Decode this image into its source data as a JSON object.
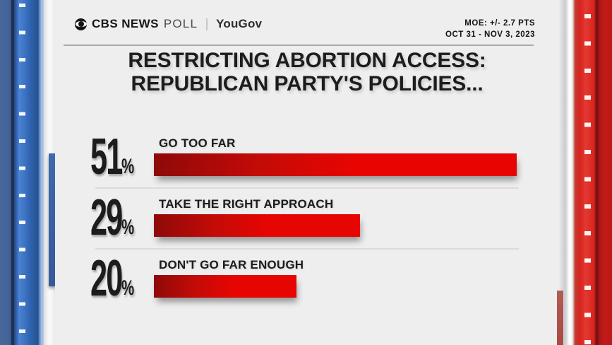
{
  "header": {
    "brand_bold": "CBS NEWS",
    "brand_light": "POLL",
    "partner": "YouGov",
    "moe_line1": "MOE: +/- 2.7 PTS",
    "moe_line2": "OCT 31 - NOV 3, 2023"
  },
  "title": {
    "line1": "RESTRICTING ABORTION ACCESS:",
    "line2": "REPUBLICAN PARTY'S POLICIES..."
  },
  "chart_data": {
    "type": "bar",
    "orientation": "horizontal",
    "title": "RESTRICTING ABORTION ACCESS: REPUBLICAN PARTY'S POLICIES...",
    "categories": [
      "GO TOO FAR",
      "TAKE THE RIGHT APPROACH",
      "DON'T GO FAR ENOUGH"
    ],
    "values": [
      51,
      29,
      20
    ],
    "unit": "%",
    "xlim": [
      0,
      51
    ],
    "bar_gradient": [
      "#8e0909",
      "#e60501"
    ],
    "source": "CBS NEWS POLL / YouGov",
    "note": "MOE: +/- 2.7 PTS, OCT 31 - NOV 3, 2023"
  },
  "colors": {
    "page_background": "#eeeeee",
    "bar_red": "#e60501",
    "panel_blue": "#2f66b4",
    "panel_red": "#d8231f",
    "text_dark": "#1c1c1c",
    "divider_gray": "#dbdbdb"
  }
}
